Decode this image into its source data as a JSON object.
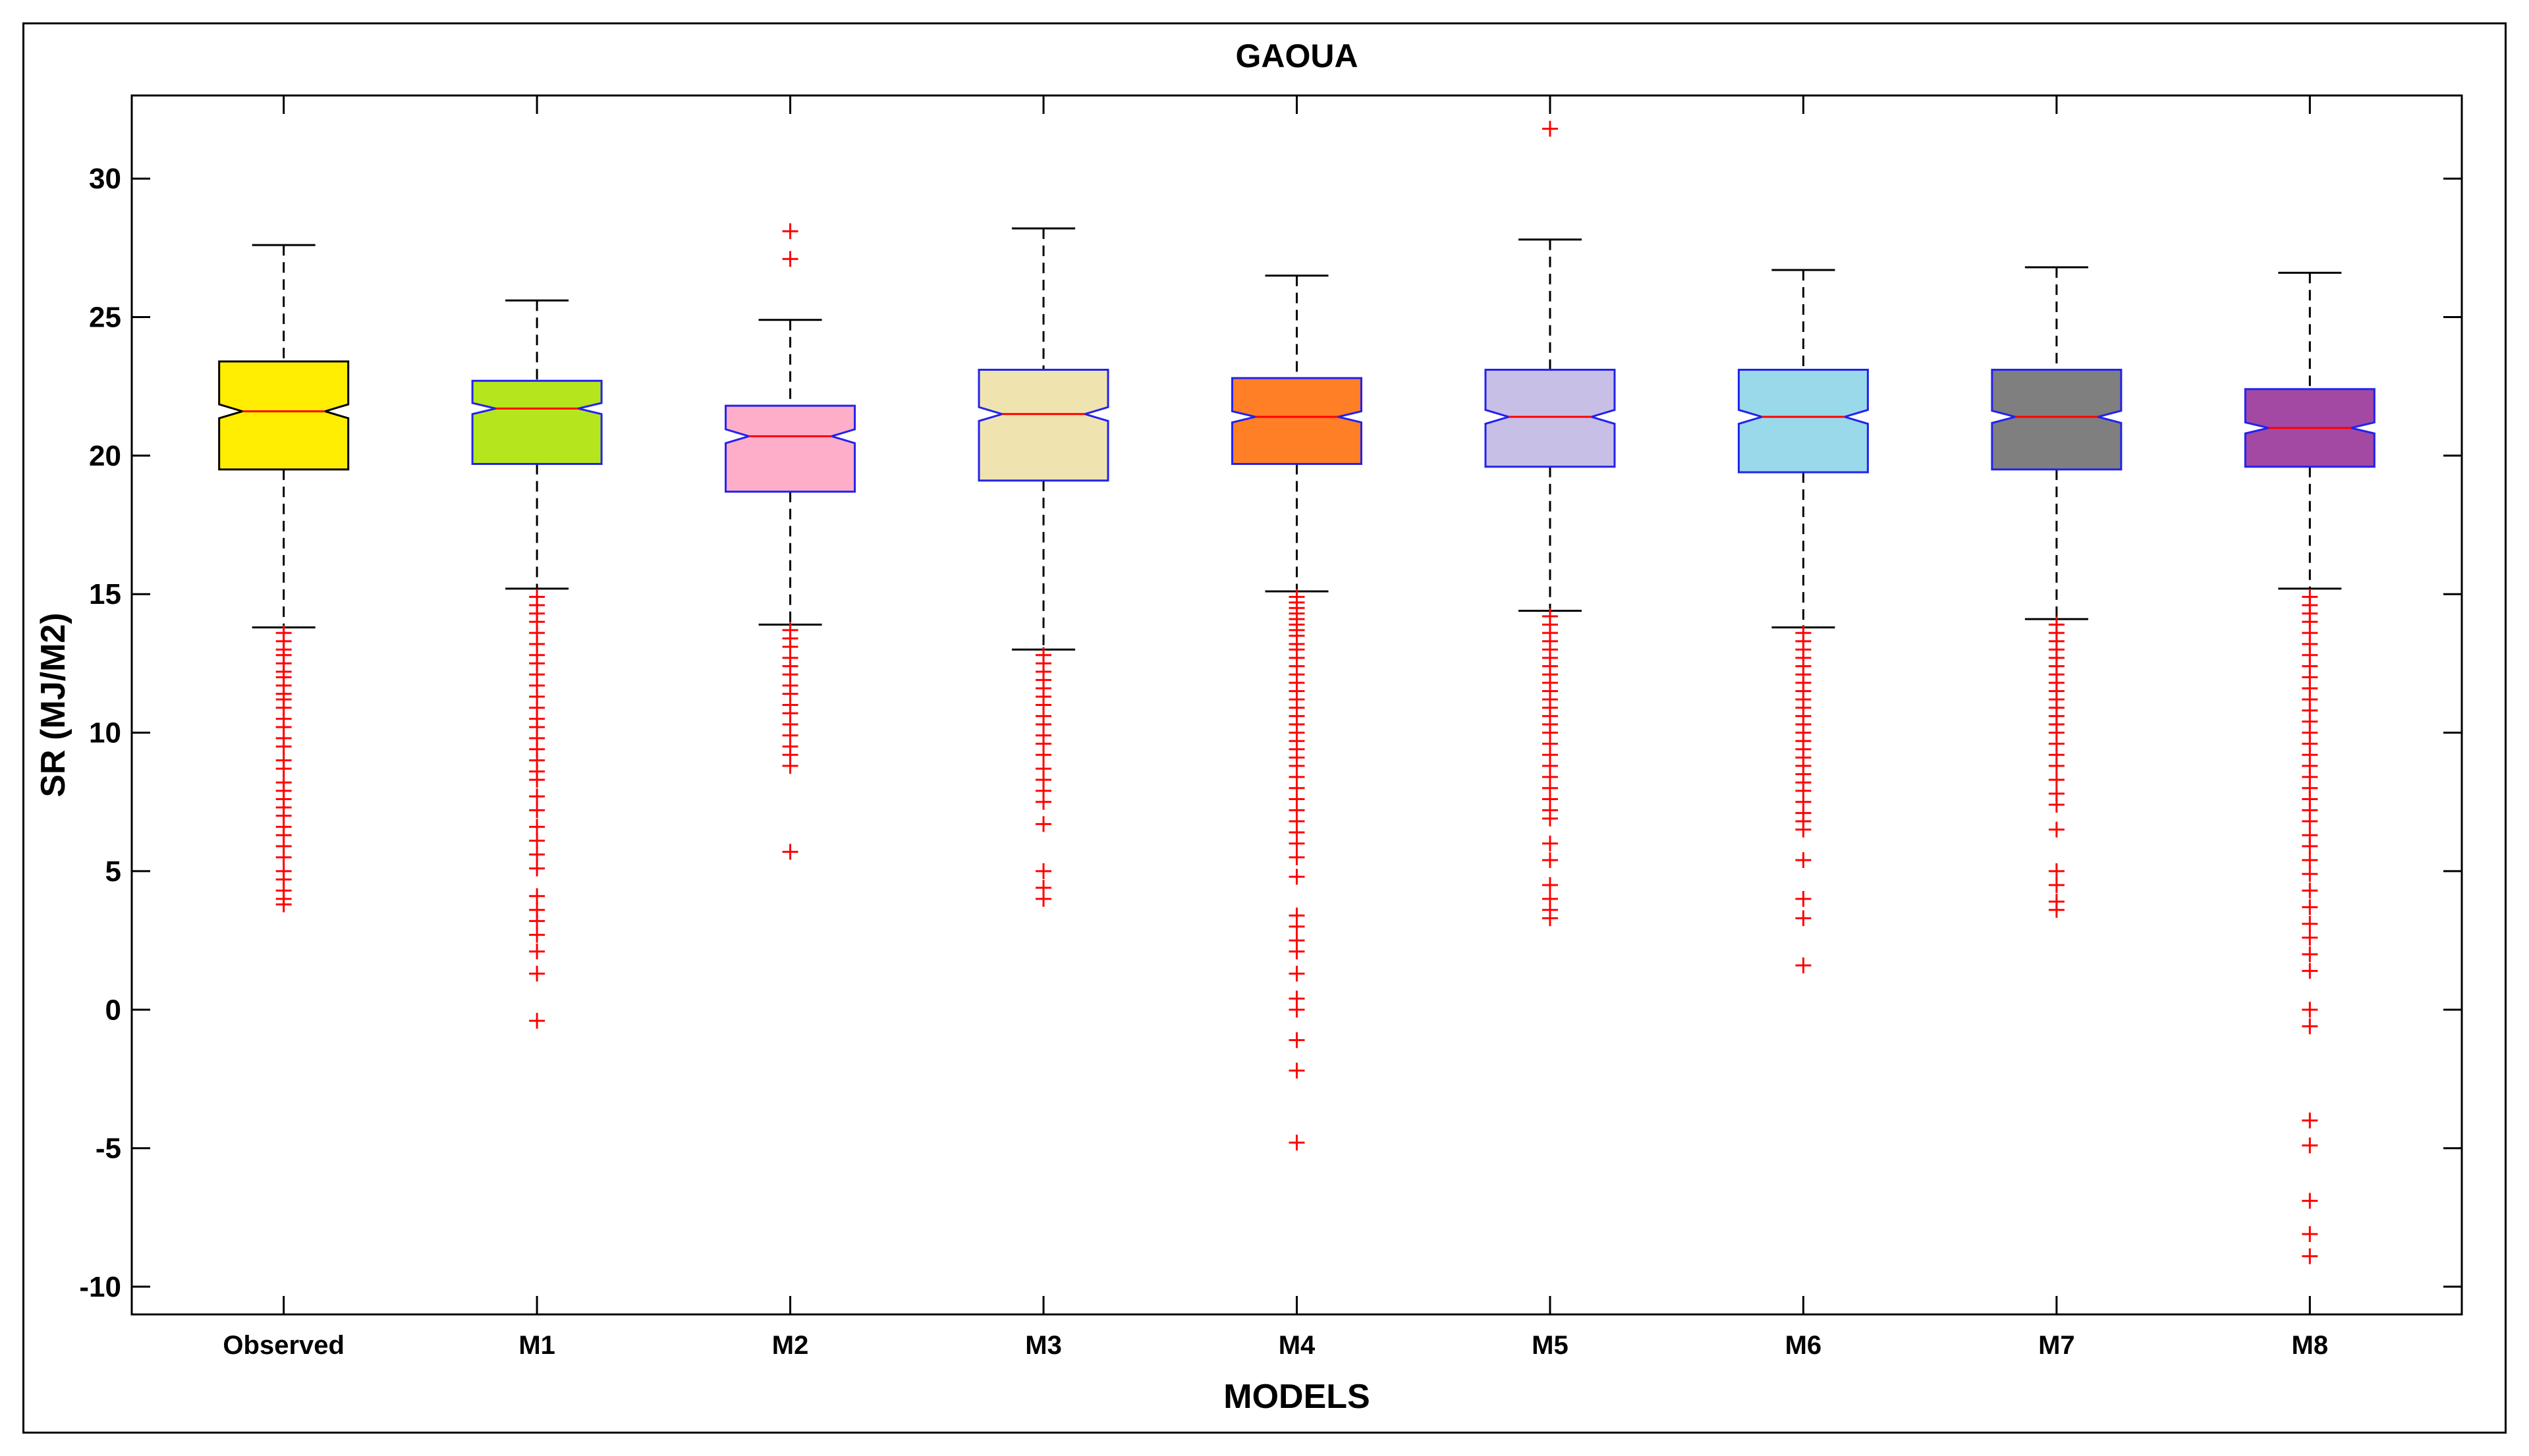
{
  "chart_data": {
    "type": "boxplot",
    "title": "GAOUA",
    "xlabel": "MODELS",
    "ylabel": "SR (MJ/M2)",
    "ylim": [
      -11,
      33
    ],
    "yticks": [
      30,
      25,
      20,
      15,
      10,
      5,
      0,
      -5,
      -10
    ],
    "ytick_labels": [
      "30",
      "25",
      "20",
      "15",
      "10",
      "5",
      "0",
      "-5",
      "-10"
    ],
    "categories": [
      "Observed",
      "M1",
      "M2",
      "M3",
      "M4",
      "M5",
      "M6",
      "M7",
      "M8"
    ],
    "series": [
      {
        "name": "Observed",
        "color": "#ffee00",
        "edge": "#000000",
        "median": 21.6,
        "q1": 19.5,
        "q3": 23.4,
        "whisker_low": 13.8,
        "whisker_high": 27.6,
        "notch": 0.25,
        "outliers": [
          13.6,
          13.3,
          13.0,
          12.8,
          12.5,
          12.2,
          12.0,
          11.7,
          11.4,
          11.2,
          10.9,
          10.5,
          10.2,
          9.8,
          9.5,
          9.0,
          8.7,
          8.2,
          7.9,
          7.6,
          7.3,
          7.0,
          6.6,
          6.3,
          5.9,
          5.5,
          5.0,
          4.7,
          4.3,
          4.0,
          3.8
        ]
      },
      {
        "name": "M1",
        "color": "#b5e61d",
        "edge": "#2222ee",
        "median": 21.7,
        "q1": 19.7,
        "q3": 22.7,
        "whisker_low": 15.2,
        "whisker_high": 25.6,
        "notch": 0.2,
        "outliers": [
          14.9,
          14.6,
          14.3,
          14.0,
          13.6,
          13.2,
          12.8,
          12.5,
          12.1,
          11.7,
          11.3,
          10.9,
          10.5,
          10.2,
          9.8,
          9.4,
          9.0,
          8.6,
          8.3,
          7.7,
          7.2,
          6.6,
          6.1,
          5.6,
          5.1,
          4.1,
          3.6,
          3.2,
          2.7,
          2.1,
          1.3,
          -0.4
        ]
      },
      {
        "name": "M2",
        "color": "#ffaec9",
        "edge": "#2222ee",
        "median": 20.7,
        "q1": 18.7,
        "q3": 21.8,
        "whisker_low": 13.9,
        "whisker_high": 24.9,
        "notch": 0.25,
        "outliers": [
          28.1,
          27.1,
          13.7,
          13.4,
          13.1,
          12.7,
          12.4,
          12.1,
          11.7,
          11.4,
          11.0,
          10.7,
          10.3,
          9.9,
          9.5,
          9.2,
          8.8,
          5.7
        ]
      },
      {
        "name": "M3",
        "color": "#efe4b0",
        "edge": "#2222ee",
        "median": 21.5,
        "q1": 19.1,
        "q3": 23.1,
        "whisker_low": 13.0,
        "whisker_high": 28.2,
        "notch": 0.25,
        "outliers": [
          12.8,
          12.5,
          12.2,
          11.9,
          11.6,
          11.3,
          11.0,
          10.6,
          10.3,
          9.9,
          9.6,
          9.2,
          8.7,
          8.3,
          7.9,
          7.5,
          6.7,
          5.0,
          4.4,
          4.0
        ]
      },
      {
        "name": "M4",
        "color": "#ff7f27",
        "edge": "#2222ee",
        "median": 21.4,
        "q1": 19.7,
        "q3": 22.8,
        "whisker_low": 15.1,
        "whisker_high": 26.5,
        "notch": 0.2,
        "outliers": [
          14.9,
          14.7,
          14.5,
          14.3,
          14.1,
          13.9,
          13.7,
          13.5,
          13.2,
          13.0,
          12.7,
          12.4,
          12.1,
          11.8,
          11.5,
          11.2,
          10.9,
          10.6,
          10.3,
          10.0,
          9.7,
          9.4,
          9.1,
          8.8,
          8.4,
          8.0,
          7.6,
          7.2,
          6.8,
          6.4,
          6.0,
          5.5,
          4.8,
          3.4,
          3.0,
          2.5,
          2.1,
          1.3,
          0.4,
          0.0,
          -1.1,
          -2.2,
          -4.8
        ]
      },
      {
        "name": "M5",
        "color": "#c8bfe7",
        "edge": "#2222ee",
        "median": 21.4,
        "q1": 19.6,
        "q3": 23.1,
        "whisker_low": 14.4,
        "whisker_high": 27.8,
        "notch": 0.25,
        "outliers": [
          31.8,
          14.2,
          13.9,
          13.6,
          13.3,
          13.0,
          12.7,
          12.4,
          12.1,
          11.8,
          11.5,
          11.2,
          10.9,
          10.6,
          10.3,
          10.0,
          9.6,
          9.2,
          8.8,
          8.4,
          8.0,
          7.6,
          7.2,
          6.9,
          6.0,
          5.4,
          4.5,
          4.0,
          3.6,
          3.3
        ]
      },
      {
        "name": "M6",
        "color": "#99d9ea",
        "edge": "#2222ee",
        "median": 21.4,
        "q1": 19.4,
        "q3": 23.1,
        "whisker_low": 13.8,
        "whisker_high": 26.7,
        "notch": 0.25,
        "outliers": [
          13.6,
          13.3,
          13.0,
          12.7,
          12.4,
          12.1,
          11.8,
          11.5,
          11.2,
          10.9,
          10.6,
          10.3,
          10.0,
          9.7,
          9.4,
          9.1,
          8.8,
          8.5,
          8.2,
          7.9,
          7.5,
          7.1,
          6.8,
          6.5,
          5.4,
          4.0,
          3.3,
          1.6
        ]
      },
      {
        "name": "M7",
        "color": "#7f7f7f",
        "edge": "#2222ee",
        "median": 21.4,
        "q1": 19.5,
        "q3": 23.1,
        "whisker_low": 14.1,
        "whisker_high": 26.8,
        "notch": 0.22,
        "outliers": [
          13.9,
          13.6,
          13.3,
          13.0,
          12.7,
          12.4,
          12.1,
          11.8,
          11.5,
          11.2,
          10.9,
          10.6,
          10.3,
          10.0,
          9.6,
          9.2,
          8.8,
          8.3,
          7.8,
          7.4,
          6.5,
          5.0,
          4.5,
          3.9,
          3.6
        ]
      },
      {
        "name": "M8",
        "color": "#a349a4",
        "edge": "#2222ee",
        "median": 21.0,
        "q1": 19.6,
        "q3": 22.4,
        "whisker_low": 15.2,
        "whisker_high": 26.6,
        "notch": 0.2,
        "outliers": [
          14.9,
          14.6,
          14.3,
          14.0,
          13.6,
          13.2,
          12.8,
          12.4,
          12.0,
          11.6,
          11.2,
          10.8,
          10.4,
          10.0,
          9.6,
          9.2,
          8.8,
          8.4,
          8.0,
          7.6,
          7.2,
          6.8,
          6.3,
          5.9,
          5.4,
          4.9,
          4.3,
          3.7,
          3.1,
          2.6,
          2.0,
          1.4,
          0.0,
          -0.6,
          -4.0,
          -4.9,
          -6.9,
          -8.1,
          -8.9
        ]
      }
    ]
  }
}
